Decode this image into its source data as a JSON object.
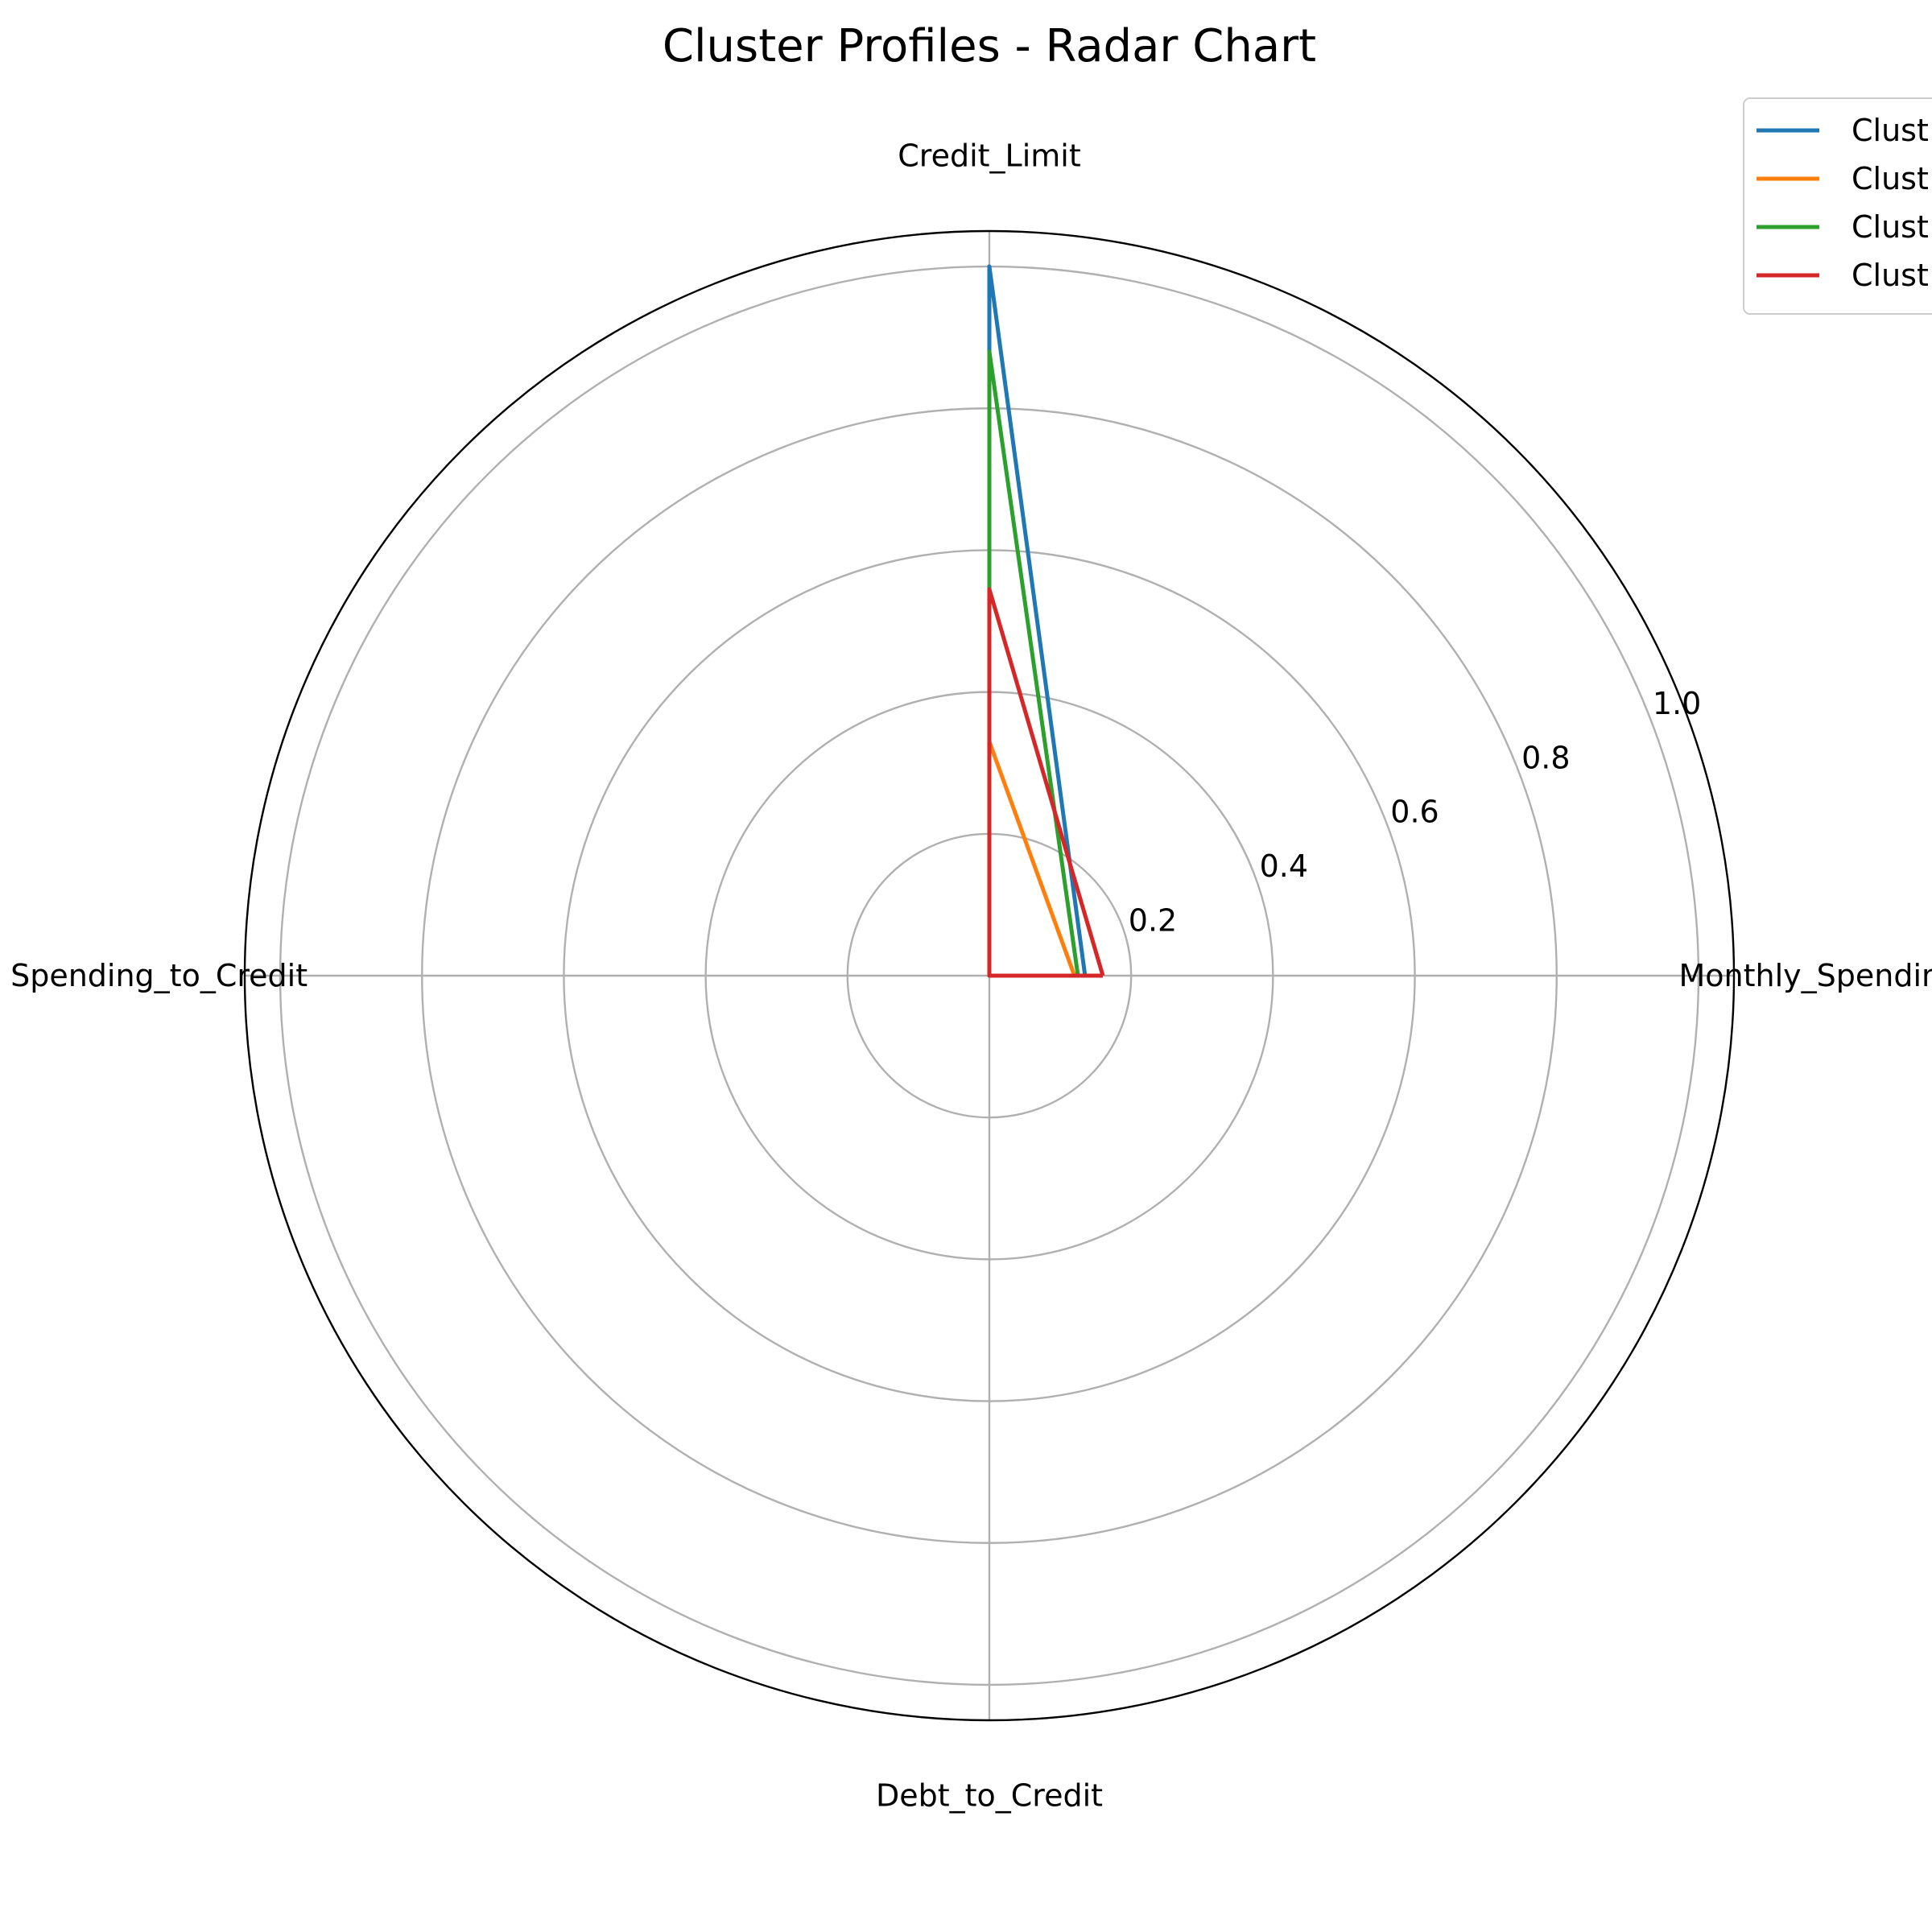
{
  "chart_data": {
    "type": "radar",
    "title": "Cluster Profiles - Radar Chart",
    "axes": [
      "Monthly_Spending",
      "Credit_Limit",
      "Spending_to_Credit",
      "Debt_to_Credit"
    ],
    "rlim": [
      0,
      1.05
    ],
    "rticks": [
      0.2,
      0.4,
      0.6,
      0.8,
      1.0
    ],
    "rtick_labels": [
      "0.2",
      "0.4",
      "0.6",
      "0.8",
      "1.0"
    ],
    "grid": true,
    "legend_position": "top-right",
    "series": [
      {
        "name": "Clust",
        "color": "#1f77b4",
        "values": [
          0.135,
          1.0,
          0.0,
          0.0
        ]
      },
      {
        "name": "Clust",
        "color": "#ff7f0e",
        "values": [
          0.12,
          0.33,
          0.0,
          0.0
        ]
      },
      {
        "name": "Clust",
        "color": "#2ca02c",
        "values": [
          0.125,
          0.88,
          0.0,
          0.0
        ]
      },
      {
        "name": "Clust",
        "color": "#d62728",
        "values": [
          0.16,
          0.545,
          0.0,
          0.0
        ]
      }
    ]
  }
}
